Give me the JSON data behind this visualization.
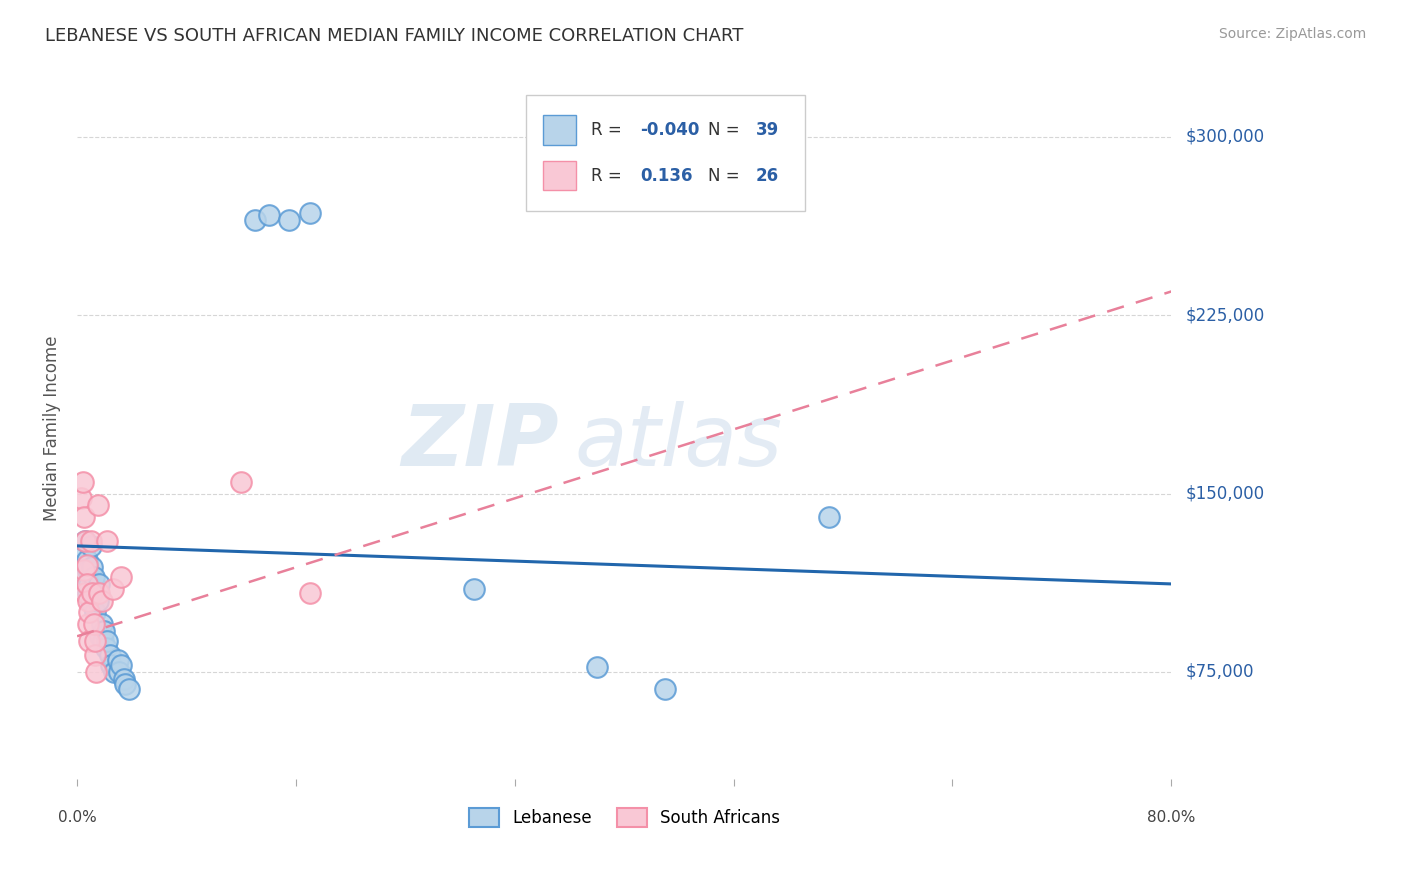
{
  "title": "LEBANESE VS SOUTH AFRICAN MEDIAN FAMILY INCOME CORRELATION CHART",
  "source": "Source: ZipAtlas.com",
  "ylabel": "Median Family Income",
  "xlim": [
    0.0,
    0.8
  ],
  "ylim": [
    30000,
    325000
  ],
  "yticks": [
    75000,
    150000,
    225000,
    300000
  ],
  "ytick_labels": [
    "$75,000",
    "$150,000",
    "$225,000",
    "$300,000"
  ],
  "watermark_zip": "ZIP",
  "watermark_atlas": "atlas",
  "blue_color_face": "#b8d4ea",
  "blue_color_edge": "#5b9bd5",
  "pink_color_face": "#f9c8d5",
  "pink_color_edge": "#f490a8",
  "blue_line_color": "#2166ac",
  "pink_line_color": "#e8809a",
  "legend_text_color": "#2b5fa5",
  "legend_label_color": "#333333",
  "blue_scatter": [
    [
      0.003,
      120000
    ],
    [
      0.005,
      125000
    ],
    [
      0.005,
      115000
    ],
    [
      0.006,
      130000
    ],
    [
      0.007,
      122000
    ],
    [
      0.008,
      118000
    ],
    [
      0.008,
      108000
    ],
    [
      0.009,
      112000
    ],
    [
      0.01,
      105000
    ],
    [
      0.01,
      128000
    ],
    [
      0.011,
      119000
    ],
    [
      0.012,
      115000
    ],
    [
      0.012,
      108000
    ],
    [
      0.013,
      100000
    ],
    [
      0.014,
      108000
    ],
    [
      0.015,
      105000
    ],
    [
      0.016,
      112000
    ],
    [
      0.017,
      90000
    ],
    [
      0.018,
      95000
    ],
    [
      0.019,
      88000
    ],
    [
      0.02,
      92000
    ],
    [
      0.021,
      85000
    ],
    [
      0.022,
      88000
    ],
    [
      0.024,
      82000
    ],
    [
      0.025,
      78000
    ],
    [
      0.027,
      75000
    ],
    [
      0.03,
      80000
    ],
    [
      0.031,
      75000
    ],
    [
      0.032,
      78000
    ],
    [
      0.034,
      72000
    ],
    [
      0.035,
      70000
    ],
    [
      0.038,
      68000
    ],
    [
      0.13,
      265000
    ],
    [
      0.14,
      267000
    ],
    [
      0.155,
      265000
    ],
    [
      0.17,
      268000
    ],
    [
      0.29,
      110000
    ],
    [
      0.38,
      77000
    ],
    [
      0.43,
      68000
    ],
    [
      0.55,
      140000
    ]
  ],
  "pink_scatter": [
    [
      0.003,
      148000
    ],
    [
      0.004,
      155000
    ],
    [
      0.005,
      140000
    ],
    [
      0.005,
      118000
    ],
    [
      0.006,
      130000
    ],
    [
      0.006,
      108000
    ],
    [
      0.007,
      120000
    ],
    [
      0.007,
      112000
    ],
    [
      0.008,
      105000
    ],
    [
      0.008,
      95000
    ],
    [
      0.009,
      100000
    ],
    [
      0.009,
      88000
    ],
    [
      0.01,
      130000
    ],
    [
      0.011,
      108000
    ],
    [
      0.012,
      95000
    ],
    [
      0.013,
      82000
    ],
    [
      0.013,
      88000
    ],
    [
      0.014,
      75000
    ],
    [
      0.015,
      145000
    ],
    [
      0.016,
      108000
    ],
    [
      0.018,
      105000
    ],
    [
      0.022,
      130000
    ],
    [
      0.026,
      110000
    ],
    [
      0.032,
      115000
    ],
    [
      0.12,
      155000
    ],
    [
      0.17,
      108000
    ]
  ],
  "blue_trend": [
    0.0,
    0.8,
    128000,
    112000
  ],
  "pink_trend": [
    0.0,
    0.8,
    90000,
    235000
  ]
}
